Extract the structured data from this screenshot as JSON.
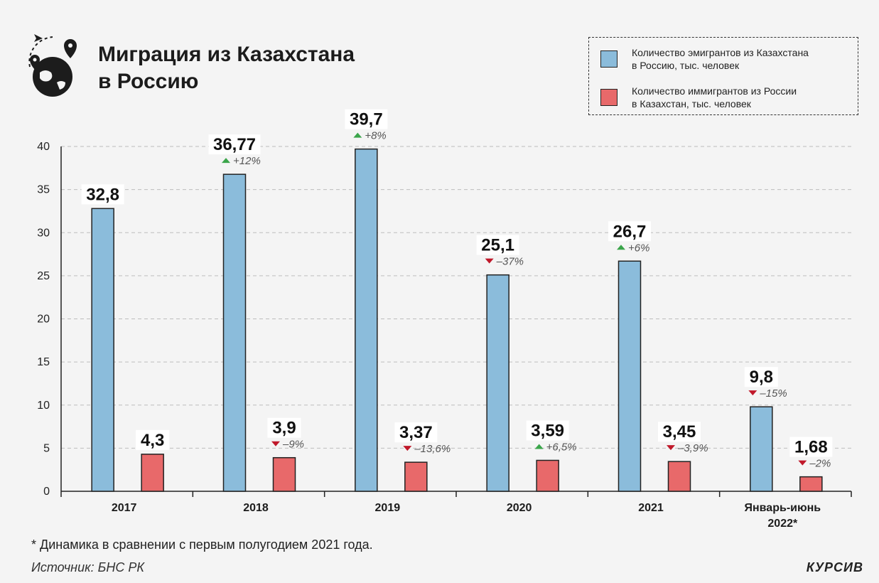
{
  "header": {
    "title_line1": "Миграция из Казахстана",
    "title_line2": "в Россию"
  },
  "legend": {
    "items": [
      {
        "label_line1": "Количество эмигрантов из Казахстана",
        "label_line2": "в Россию, тыс. человек",
        "color": "#8bbcdb"
      },
      {
        "label_line1": "Количество иммигрантов из России",
        "label_line2": "в Казахстан, тыс. человек",
        "color": "#e8696a"
      }
    ]
  },
  "chart_data": {
    "type": "bar",
    "categories": [
      {
        "line1": "2017",
        "line2": ""
      },
      {
        "line1": "2018",
        "line2": ""
      },
      {
        "line1": "2019",
        "line2": ""
      },
      {
        "line1": "2020",
        "line2": ""
      },
      {
        "line1": "2021",
        "line2": ""
      },
      {
        "line1": "Январь-июнь",
        "line2": "2022*"
      }
    ],
    "ylim": [
      0,
      40
    ],
    "yticks": [
      0,
      5,
      10,
      15,
      20,
      25,
      30,
      35,
      40
    ],
    "grid": true,
    "series": [
      {
        "color": "#8bbcdb",
        "values": [
          32.8,
          36.77,
          39.7,
          25.1,
          26.7,
          9.8
        ],
        "value_labels": [
          "32,8",
          "36,77",
          "39,7",
          "25,1",
          "26,7",
          "9,8"
        ],
        "changes": [
          "",
          "+12%",
          "+8%",
          "–37%",
          "+6%",
          "–15%"
        ],
        "directions": [
          "",
          "up",
          "up",
          "down",
          "up",
          "down"
        ]
      },
      {
        "color": "#e8696a",
        "values": [
          4.3,
          3.9,
          3.37,
          3.59,
          3.45,
          1.68
        ],
        "value_labels": [
          "4,3",
          "3,9",
          "3,37",
          "3,59",
          "3,45",
          "1,68"
        ],
        "changes": [
          "",
          "–9%",
          "–13,6%",
          "+6,5%",
          "–3,9%",
          "–2%"
        ],
        "directions": [
          "",
          "down",
          "down",
          "up",
          "down",
          "down"
        ]
      }
    ],
    "up_color": "#3aa54a",
    "down_color": "#c0182a"
  },
  "footer": {
    "footnote": "* Динамика в сравнении с первым полугодием 2021 года.",
    "source": "Источник: БНС РК",
    "brand": "КУРСИВ"
  }
}
